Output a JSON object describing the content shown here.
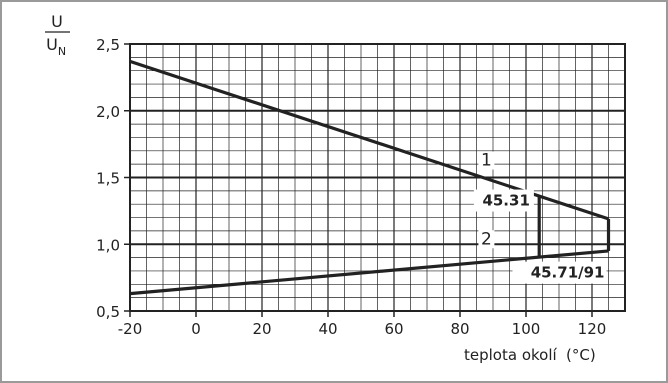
{
  "chart_data": {
    "type": "line",
    "x_ticks": [
      "-20",
      "0",
      "20",
      "40",
      "60",
      "80",
      "100",
      "120"
    ],
    "y_ticks": [
      "0,5",
      "1,0",
      "1,5",
      "2,0",
      "2,5"
    ],
    "xlim": [
      -20,
      130
    ],
    "ylim": [
      0.5,
      2.5
    ],
    "ylabel_num": "U",
    "ylabel_den": "U",
    "ylabel_den_sub": "N",
    "xlabel": "teplota okolí",
    "xunit": "(°C)",
    "grid": true,
    "series": [
      {
        "name": "1",
        "x": [
          -20,
          125
        ],
        "y": [
          2.37,
          1.19
        ]
      },
      {
        "name": "2",
        "x": [
          -20,
          125
        ],
        "y": [
          0.63,
          0.95
        ]
      }
    ],
    "regions": [
      {
        "label": "45.31",
        "x": [
          104,
          104
        ],
        "y": [
          0.9,
          1.36
        ]
      },
      {
        "label": "45.71/91",
        "x": [
          125,
          125
        ],
        "y": [
          0.95,
          1.19
        ]
      }
    ],
    "line_labels": [
      "1",
      "2"
    ]
  }
}
